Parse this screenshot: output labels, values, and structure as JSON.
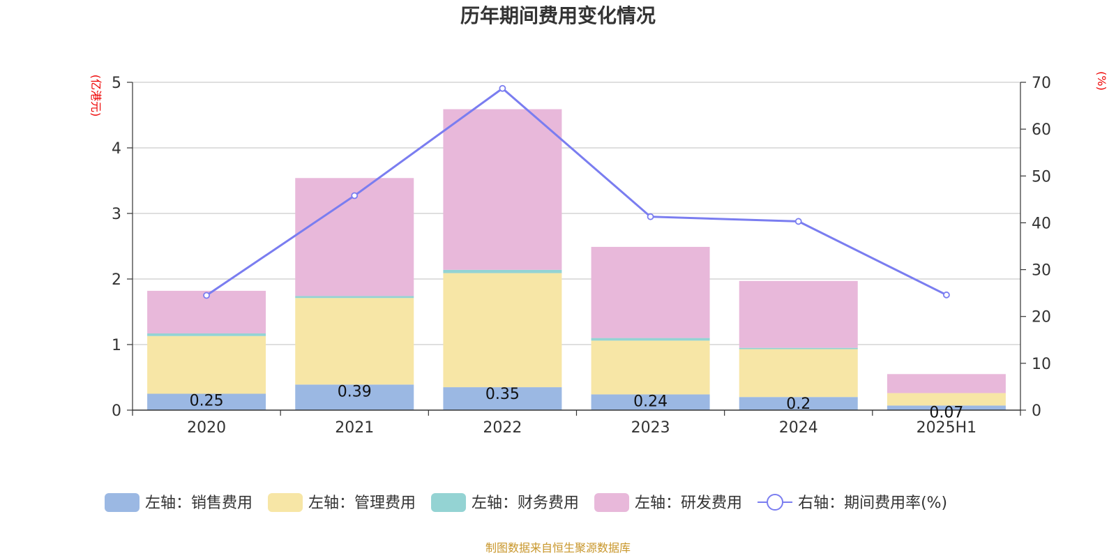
{
  "chart_data": {
    "type": "bar",
    "title": "历年期间费用变化情况",
    "left_unit": "(亿港元)",
    "right_unit": "(%)",
    "categories": [
      "2020",
      "2021",
      "2022",
      "2023",
      "2024",
      "2025H1"
    ],
    "y_left": {
      "min": 0,
      "max": 5,
      "ticks": [
        "0",
        "1",
        "2",
        "3",
        "4",
        "5"
      ]
    },
    "y_right": {
      "min": 0,
      "max": 70,
      "ticks": [
        "0",
        "10",
        "20",
        "30",
        "40",
        "50",
        "60",
        "70"
      ]
    },
    "stacked": true,
    "grid": true,
    "legend_position": "bottom",
    "series": [
      {
        "name": "左轴：销售费用",
        "type": "bar",
        "axis": "left",
        "color": "#9bb8e3",
        "values": [
          0.25,
          0.39,
          0.35,
          0.24,
          0.2,
          0.07
        ],
        "labels": [
          "0.25",
          "0.39",
          "0.35",
          "0.24",
          "0.2",
          "0.07"
        ]
      },
      {
        "name": "左轴：管理费用",
        "type": "bar",
        "axis": "left",
        "color": "#f7e6a6",
        "values": [
          0.88,
          1.32,
          1.74,
          0.82,
          0.73,
          0.19
        ]
      },
      {
        "name": "左轴：财务费用",
        "type": "bar",
        "axis": "left",
        "color": "#94d3d3",
        "values": [
          0.04,
          0.03,
          0.05,
          0.04,
          0.02,
          0.0
        ]
      },
      {
        "name": "左轴：研发费用",
        "type": "bar",
        "axis": "left",
        "color": "#e8b8da",
        "values": [
          0.65,
          1.8,
          2.45,
          1.39,
          1.02,
          0.29
        ]
      },
      {
        "name": "右轴：期间费用率(%)",
        "type": "line",
        "axis": "right",
        "color": "#7a7df0",
        "values": [
          24.5,
          45.8,
          68.7,
          41.3,
          40.3,
          24.6
        ]
      }
    ]
  },
  "source_text": "制图数据来自恒生聚源数据库"
}
